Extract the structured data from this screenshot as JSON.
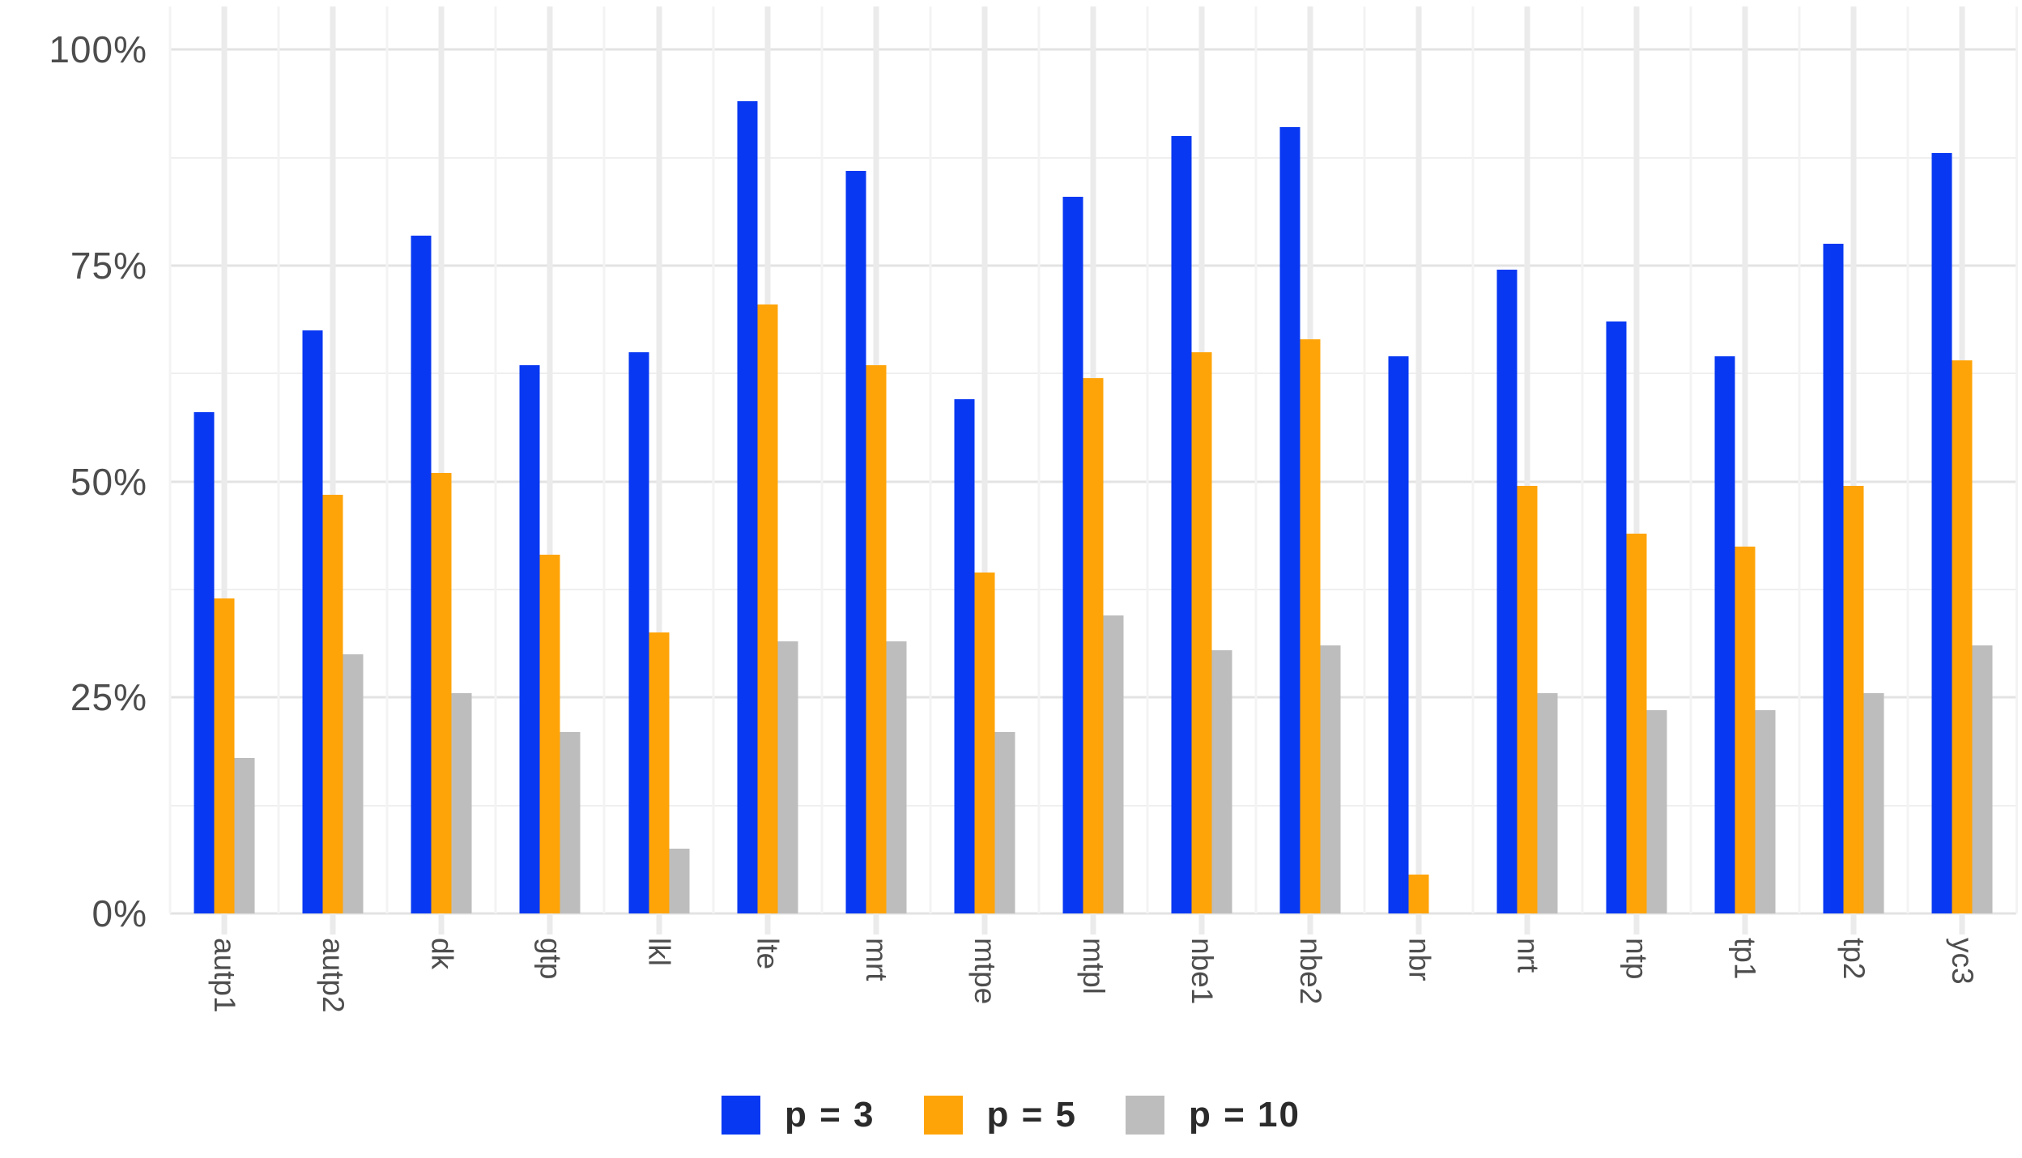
{
  "chart_data": {
    "type": "bar",
    "title": "",
    "xlabel": "",
    "ylabel": "",
    "categories": [
      "autp1",
      "autp2",
      "dk",
      "gtp",
      "lkl",
      "lte",
      "mrt",
      "mtpe",
      "mtpl",
      "nbe1",
      "nbe2",
      "nbr",
      "nrt",
      "ntp",
      "tp1",
      "tp2",
      "yc3"
    ],
    "series": [
      {
        "name": "p = 3",
        "color": "#0838f2",
        "values": [
          58,
          67.5,
          78.5,
          63.5,
          65,
          94,
          86,
          59.5,
          83,
          90,
          91,
          64.5,
          74.5,
          68.5,
          64.5,
          77.5,
          88
        ]
      },
      {
        "name": "p = 5",
        "color": "#ffa408",
        "values": [
          36.5,
          48.5,
          51,
          41.5,
          32.5,
          70.5,
          63.5,
          39.5,
          62,
          65,
          66.5,
          4.5,
          49.5,
          44,
          42.5,
          49.5,
          64
        ]
      },
      {
        "name": "p = 10",
        "color": "#bdbdbd",
        "values": [
          18,
          30,
          25.5,
          21,
          7.5,
          31.5,
          31.5,
          21,
          34.5,
          30.5,
          31,
          0,
          25.5,
          23.5,
          23.5,
          25.5,
          31
        ]
      }
    ],
    "y_tick_labels": [
      "0%",
      "25%",
      "50%",
      "75%",
      "100%"
    ],
    "y_tick_values": [
      0,
      25,
      50,
      75,
      100
    ],
    "y_minor_tick_values": [
      12.5,
      37.5,
      62.5,
      87.5
    ],
    "ylim": [
      0,
      105
    ],
    "unit": "%",
    "grid": "on",
    "legend_position": "bottom",
    "legend_labels": [
      "p = 3",
      "p = 5",
      "p = 10"
    ]
  }
}
